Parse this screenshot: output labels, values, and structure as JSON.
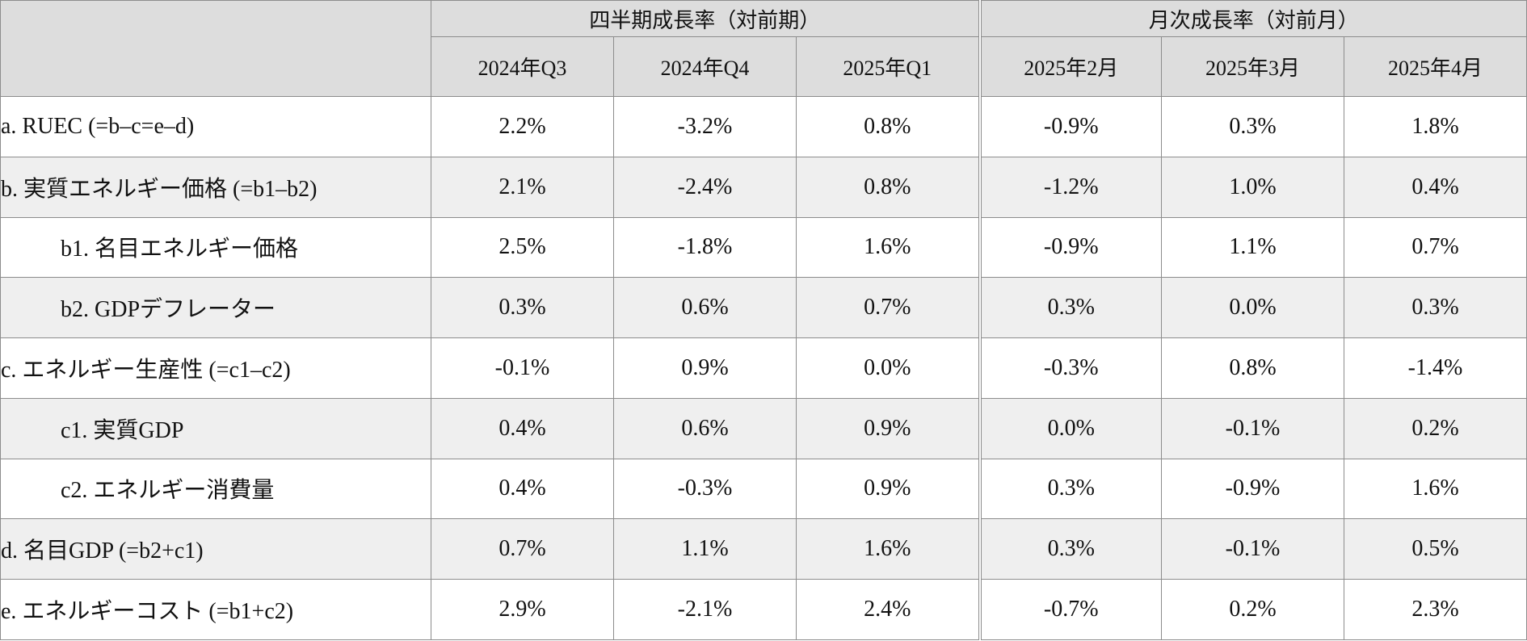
{
  "table": {
    "group_headers": {
      "quarterly": "四半期成長率（対前期）",
      "monthly": "月次成長率（対前月）"
    },
    "column_headers": [
      "2024年Q3",
      "2024年Q4",
      "2025年Q1",
      "2025年2月",
      "2025年3月",
      "2025年4月"
    ],
    "rows": [
      {
        "label": "a. RUEC (=b–c=e–d)",
        "values": [
          "2.2%",
          "-3.2%",
          "0.8%",
          "-0.9%",
          "0.3%",
          "1.8%"
        ]
      },
      {
        "label": "b. 実質エネルギー価格 (=b1–b2)",
        "values": [
          "2.1%",
          "-2.4%",
          "0.8%",
          "-1.2%",
          "1.0%",
          "0.4%"
        ]
      },
      {
        "label": "b1. 名目エネルギー価格",
        "values": [
          "2.5%",
          "-1.8%",
          "1.6%",
          "-0.9%",
          "1.1%",
          "0.7%"
        ]
      },
      {
        "label": "b2. GDPデフレーター",
        "values": [
          "0.3%",
          "0.6%",
          "0.7%",
          "0.3%",
          "0.0%",
          "0.3%"
        ]
      },
      {
        "label": "c. エネルギー生産性 (=c1–c2)",
        "values": [
          "-0.1%",
          "0.9%",
          "0.0%",
          "-0.3%",
          "0.8%",
          "-1.4%"
        ]
      },
      {
        "label": "c1. 実質GDP",
        "values": [
          "0.4%",
          "0.6%",
          "0.9%",
          "0.0%",
          "-0.1%",
          "0.2%"
        ]
      },
      {
        "label": "c2. エネルギー消費量",
        "values": [
          "0.4%",
          "-0.3%",
          "0.9%",
          "0.3%",
          "-0.9%",
          "1.6%"
        ]
      },
      {
        "label": "d. 名目GDP (=b2+c1)",
        "values": [
          "0.7%",
          "1.1%",
          "1.6%",
          "0.3%",
          "-0.1%",
          "0.5%"
        ]
      },
      {
        "label": "e. エネルギーコスト (=b1+c2)",
        "values": [
          "2.9%",
          "-2.1%",
          "2.4%",
          "-0.7%",
          "0.2%",
          "2.3%"
        ]
      }
    ]
  },
  "colors": {
    "header_bg": "#dddddd",
    "alt_row_bg": "#efefef",
    "border": "#8c8c8c"
  }
}
